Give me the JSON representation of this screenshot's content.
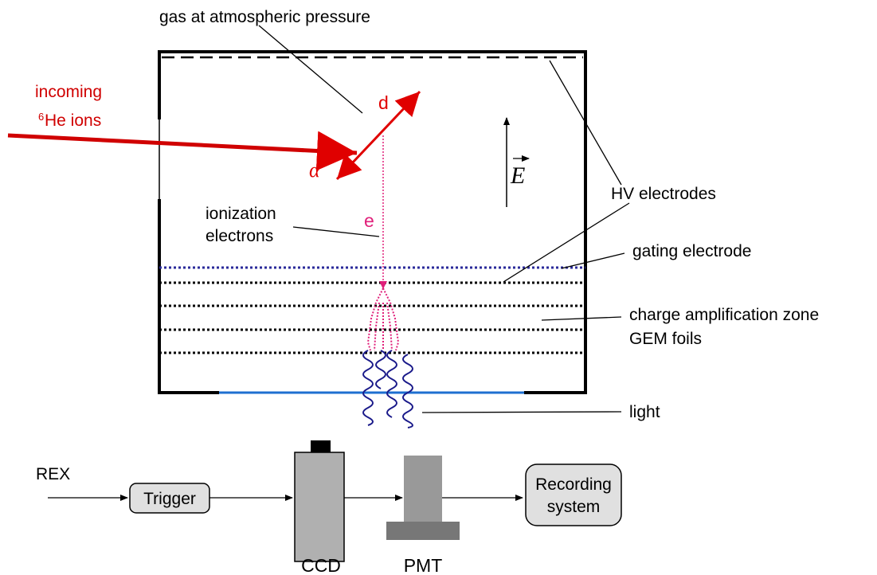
{
  "header": {
    "gas": "gas at atmospheric pressure"
  },
  "beam": {
    "line1": "incoming",
    "sup": "6",
    "line2": "He ions"
  },
  "products": {
    "d": "d",
    "alpha": "α",
    "e": "e",
    "field": "E"
  },
  "labels": {
    "ionization1": "ionization",
    "ionization2": "electrons",
    "hv": "HV electrodes",
    "gating": "gating electrode",
    "amp1": "charge amplification zone",
    "amp2": "GEM foils",
    "light": "light"
  },
  "chain": {
    "rex": "REX",
    "trigger": "Trigger",
    "ccd": "CCD",
    "pmt": "PMT",
    "rec1": "Recording",
    "rec2": "system"
  }
}
